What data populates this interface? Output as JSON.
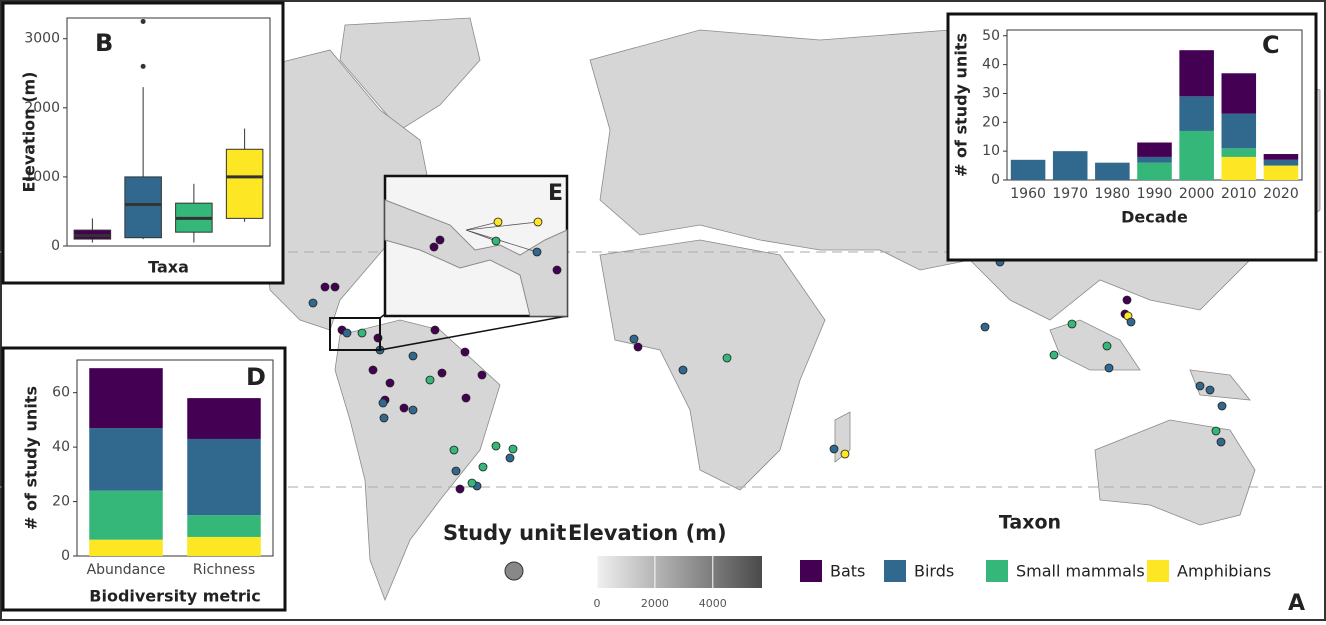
{
  "chart_data": [
    {
      "type": "map",
      "panel": "A",
      "inset_panel": "E",
      "size_legend_title": "Study unit",
      "colorbar": {
        "title": "Elevation (m)",
        "lim": [
          0,
          5700
        ],
        "ticks": [
          0,
          2000,
          4000
        ],
        "colors": [
          "#f0f0f0",
          "#4a4a4a"
        ]
      }
    },
    {
      "type": "box",
      "panel": "B",
      "ylabel": "Elevation (m)",
      "xlabel": "Taxa",
      "categories": [
        null,
        null,
        null,
        null
      ],
      "colors": [
        "#440154",
        "#31688e",
        "#35b779",
        "#fde725"
      ],
      "boxes": [
        {
          "min": 50,
          "q1": 100,
          "median": 150,
          "q3": 230,
          "max": 400,
          "outliers": []
        },
        {
          "min": 100,
          "q1": 120,
          "median": 600,
          "q3": 1000,
          "max": 2300,
          "outliers": [
            2600,
            3250
          ]
        },
        {
          "min": 50,
          "q1": 200,
          "median": 400,
          "q3": 620,
          "max": 900,
          "outliers": []
        },
        {
          "min": 350,
          "q1": 400,
          "median": 1000,
          "q3": 1400,
          "max": 1700,
          "outliers": []
        }
      ],
      "ylim": [
        0,
        3300
      ],
      "yticks": [
        0,
        1000,
        2000,
        3000
      ]
    },
    {
      "type": "bar",
      "stacked": true,
      "panel": "C",
      "ylabel": "# of study units",
      "xlabel": "Decade",
      "legend_title": "Taxon",
      "categories": [
        "1960",
        "1970",
        "1980",
        "1990",
        "2000",
        "2010",
        "2020"
      ],
      "series": [
        {
          "name": "Amphibians",
          "color": "#fde725",
          "values": [
            0,
            0,
            0,
            0,
            0,
            8,
            5
          ]
        },
        {
          "name": "Small mammals",
          "color": "#35b779",
          "values": [
            0,
            0,
            0,
            6,
            17,
            3,
            0
          ]
        },
        {
          "name": "Birds",
          "color": "#31688e",
          "values": [
            7,
            10,
            6,
            2,
            12,
            12,
            2
          ]
        },
        {
          "name": "Bats",
          "color": "#440154",
          "values": [
            0,
            0,
            0,
            5,
            16,
            14,
            2
          ]
        }
      ],
      "ylim": [
        0,
        52
      ],
      "yticks": [
        0,
        10,
        20,
        30,
        40,
        50
      ]
    },
    {
      "type": "bar",
      "stacked": true,
      "panel": "D",
      "ylabel": "# of study units",
      "xlabel": "Biodiversity metric",
      "categories": [
        "Abundance",
        "Richness"
      ],
      "series": [
        {
          "name": "Amphibians",
          "color": "#fde725",
          "values": [
            6,
            7
          ]
        },
        {
          "name": "Small mammals",
          "color": "#35b779",
          "values": [
            18,
            8
          ]
        },
        {
          "name": "Birds",
          "color": "#31688e",
          "values": [
            23,
            28
          ]
        },
        {
          "name": "Bats",
          "color": "#440154",
          "values": [
            22,
            15
          ]
        }
      ],
      "ylim": [
        0,
        72
      ],
      "yticks": [
        0,
        20,
        40,
        60
      ]
    }
  ]
}
